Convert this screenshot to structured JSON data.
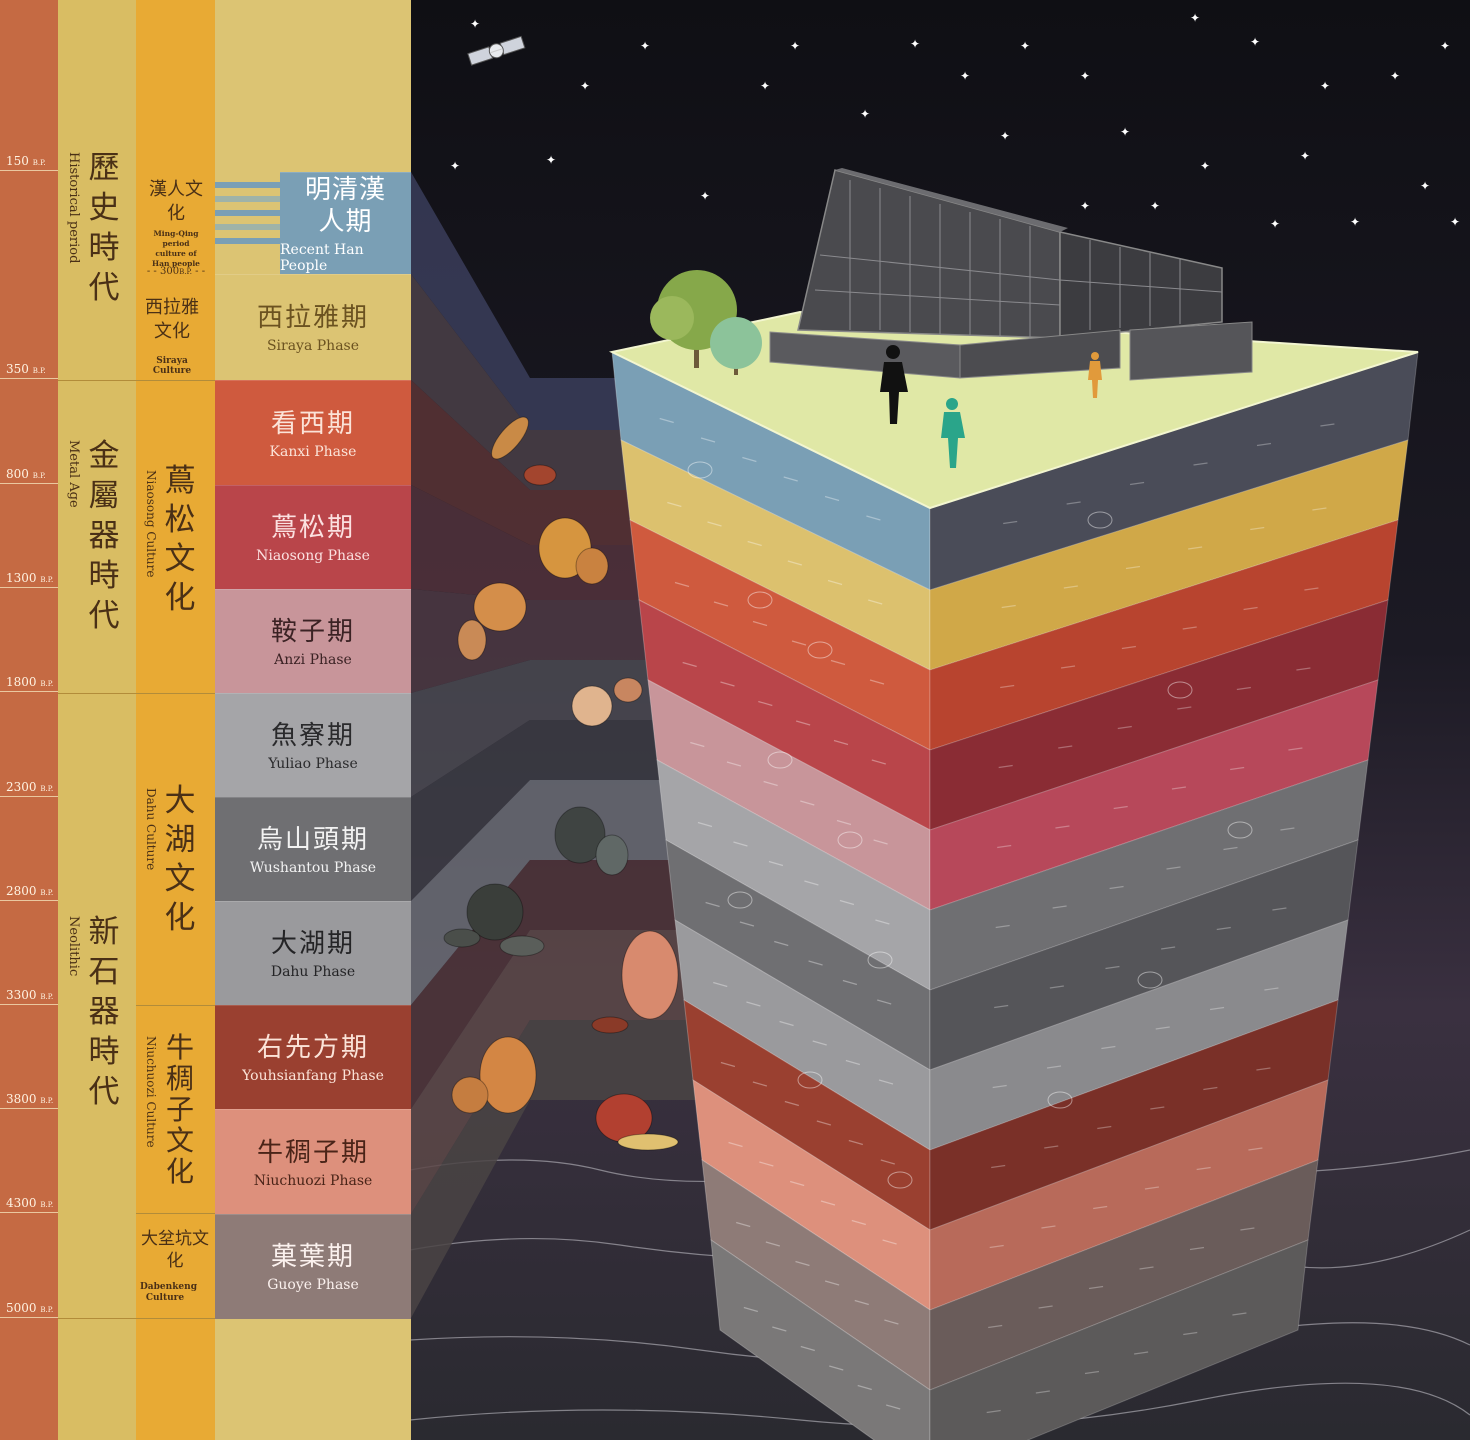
{
  "timeline_bp": [
    {
      "label": "150",
      "unit": "B.P."
    },
    {
      "label": "350",
      "unit": "B.P."
    },
    {
      "label": "800",
      "unit": "B.P."
    },
    {
      "label": "1300",
      "unit": "B.P."
    },
    {
      "label": "1800",
      "unit": "B.P."
    },
    {
      "label": "2300",
      "unit": "B.P."
    },
    {
      "label": "2800",
      "unit": "B.P."
    },
    {
      "label": "3300",
      "unit": "B.P."
    },
    {
      "label": "3800",
      "unit": "B.P."
    },
    {
      "label": "4300",
      "unit": "B.P."
    },
    {
      "label": "5000",
      "unit": "B.P."
    }
  ],
  "eras": [
    {
      "zh": "歷史時代",
      "en": "Historical period"
    },
    {
      "zh": "金屬器時代",
      "en": "Metal Age"
    },
    {
      "zh": "新石器時代",
      "en": "Neolithic"
    }
  ],
  "cultures": [
    {
      "zh": "漢人文化",
      "en": "Ming-Qing period culture of Han people"
    },
    {
      "zh": "西拉雅文化",
      "en": "Siraya Culture"
    },
    {
      "zh": "蔦松文化",
      "en": "Niaosong Culture"
    },
    {
      "zh": "大湖文化",
      "en": "Dahu Culture"
    },
    {
      "zh": "牛稠子文化",
      "en": "Niuchuozi Culture"
    },
    {
      "zh": "大坌坑文化",
      "en": "Dabenkeng Culture"
    }
  ],
  "culture_divider": {
    "label": "300",
    "unit": "B.P."
  },
  "phases": [
    {
      "zh": "明清漢人期",
      "en": "Recent Han People"
    },
    {
      "zh": "西拉雅期",
      "en": "Siraya Phase"
    },
    {
      "zh": "看西期",
      "en": "Kanxi Phase"
    },
    {
      "zh": "蔦松期",
      "en": "Niaosong Phase"
    },
    {
      "zh": "鞍子期",
      "en": "Anzi Phase"
    },
    {
      "zh": "魚寮期",
      "en": "Yuliao Phase"
    },
    {
      "zh": "烏山頭期",
      "en": "Wushantou Phase"
    },
    {
      "zh": "大湖期",
      "en": "Dahu Phase"
    },
    {
      "zh": "右先方期",
      "en": "Youhsianfang Phase"
    },
    {
      "zh": "牛稠子期",
      "en": "Niuchuozi Phase"
    },
    {
      "zh": "菓葉期",
      "en": "Guoye Phase"
    }
  ],
  "colors": {
    "timeline": "#c56a43",
    "era_column": "#d9bd63",
    "culture_column": "#e8aa34",
    "phase_column": "#dcc473",
    "night_sky": "#15151c",
    "recent_han": "#7a9fb5",
    "siraya": "#dcc473",
    "kanxi": "#cf5a3e",
    "niaosong": "#b9454a",
    "anzi": "#c8959a",
    "yuliao": "#a5a5a8",
    "wushantou": "#6f6f72",
    "dahu": "#9a9a9d",
    "youhsianfang": "#9a4030",
    "niuchuozi": "#dd907c",
    "guoye": "#8e7b77"
  }
}
